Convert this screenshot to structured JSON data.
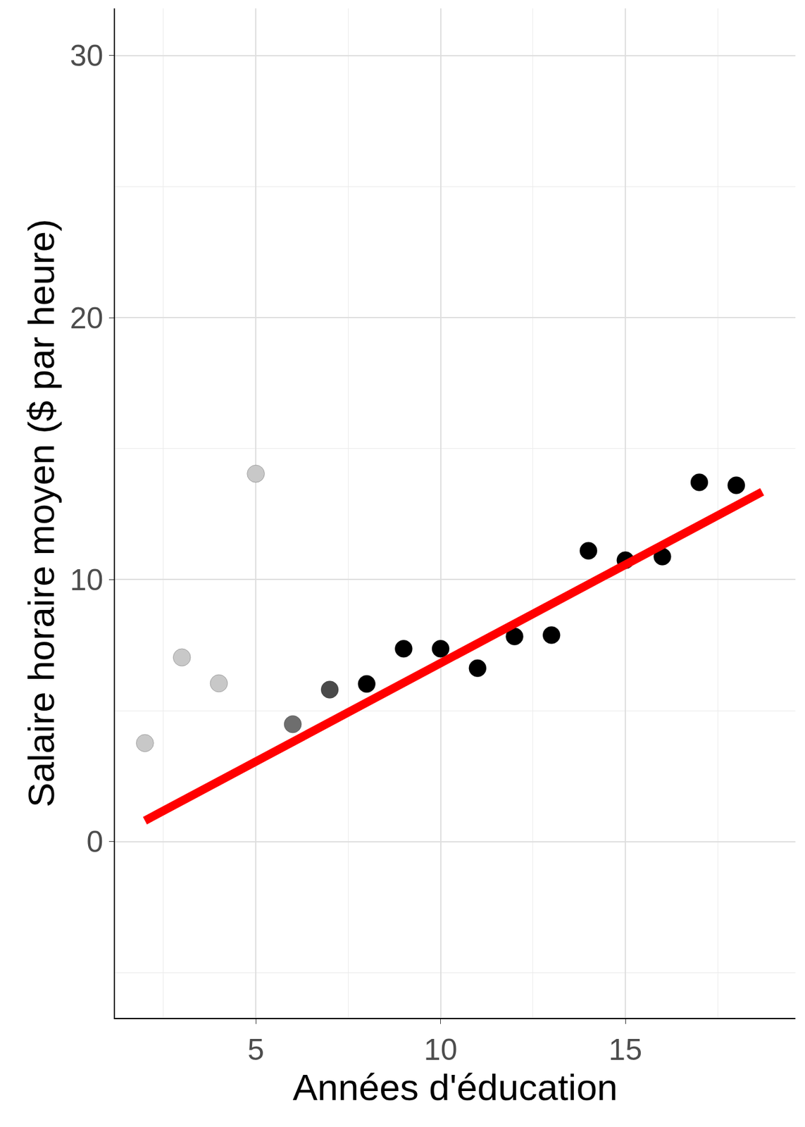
{
  "chart_data": {
    "type": "scatter",
    "x_label": "Années d'éducation",
    "y_label": "Salaire horaire moyen ($ par heure)",
    "x": [
      2,
      3,
      4,
      5,
      6,
      7,
      8,
      9,
      10,
      11,
      12,
      13,
      14,
      15,
      16,
      17,
      18
    ],
    "values": [
      3.76,
      7.03,
      6.04,
      14.04,
      4.48,
      5.8,
      6.02,
      7.36,
      7.36,
      6.62,
      7.83,
      7.88,
      11.1,
      10.74,
      10.88,
      13.71,
      13.6
    ],
    "colors": [
      "#c8c8c8",
      "#c8c8c8",
      "#c8c8c8",
      "#c8c8c8",
      "#6e6e6e",
      "#4a4a4a",
      "#000000",
      "#000000",
      "#000000",
      "#000000",
      "#000000",
      "#000000",
      "#000000",
      "#000000",
      "#000000",
      "#000000",
      "#000000"
    ],
    "marker": "circle",
    "series": [
      {
        "type": "line",
        "color": "#ff0000",
        "x": [
          2,
          18.7
        ],
        "values": [
          0.8,
          13.35
        ]
      }
    ],
    "xlim": [
      1.19,
      19.6
    ],
    "ylim": [
      -6.73,
      31.8
    ],
    "xticks": [
      5,
      10,
      15
    ],
    "yticks": [
      0,
      10,
      20,
      30
    ],
    "grid": true
  }
}
